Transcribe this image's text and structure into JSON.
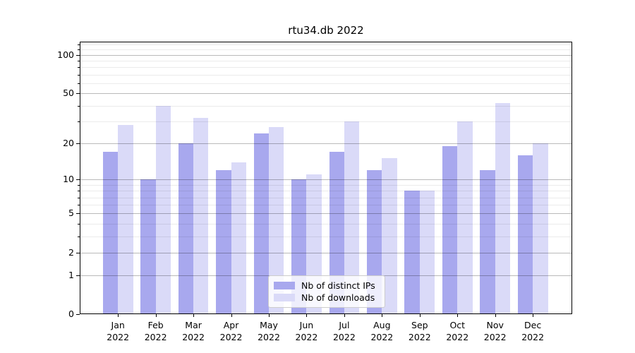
{
  "chart_data": {
    "type": "bar",
    "title": "rtu34.db 2022",
    "categories": [
      "Jan 2022",
      "Feb 2022",
      "Mar 2022",
      "Apr 2022",
      "May 2022",
      "Jun 2022",
      "Jul 2022",
      "Aug 2022",
      "Sep 2022",
      "Oct 2022",
      "Nov 2022",
      "Dec 2022"
    ],
    "series": [
      {
        "name": "Nb of distinct IPs",
        "color": "#a8a8ee",
        "values": [
          17,
          10,
          20,
          12,
          24,
          10,
          17,
          12,
          8,
          19,
          12,
          16
        ]
      },
      {
        "name": "Nb of downloads",
        "color": "#dadaf8",
        "values": [
          28,
          40,
          32,
          14,
          27,
          11,
          30,
          15,
          8,
          30,
          42,
          20
        ]
      }
    ],
    "yscale": "log1p",
    "ylim": [
      0,
      127
    ],
    "yticks": [
      0,
      1,
      2,
      5,
      10,
      20,
      50,
      100
    ],
    "minor_yticks": [
      3,
      4,
      6,
      7,
      8,
      9,
      30,
      40,
      60,
      70,
      80,
      90,
      110,
      120
    ],
    "grid": true,
    "legend_position": "bottom-center",
    "colors": {
      "distinct_ips": "#a8a8ee",
      "downloads": "#dadaf8",
      "grid_major": "#c6c6c6",
      "grid_minor": "#ececec",
      "axis": "#000000",
      "background": "#ffffff"
    }
  }
}
